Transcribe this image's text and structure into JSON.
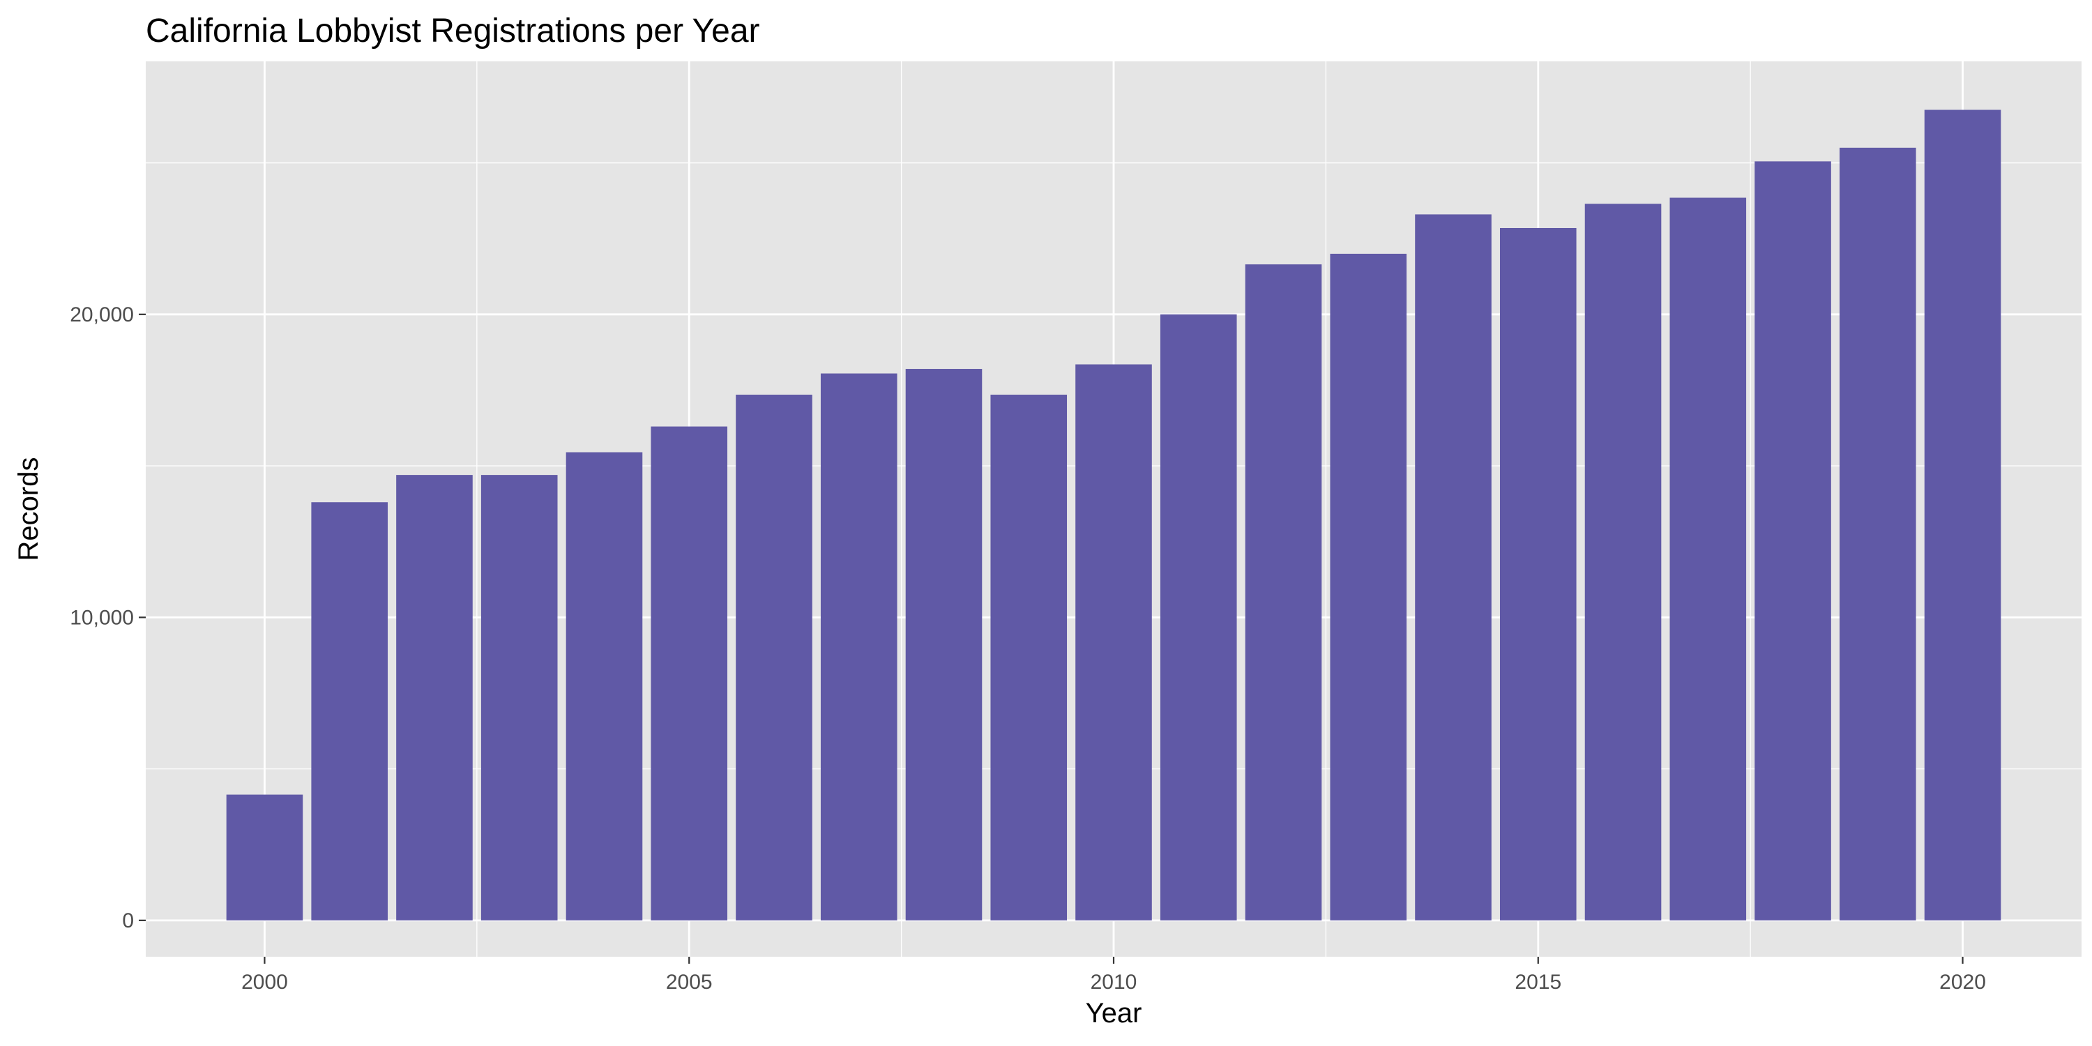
{
  "chart_data": {
    "type": "bar",
    "title": "California Lobbyist Registrations per Year",
    "xlabel": "Year",
    "ylabel": "Records",
    "categories": [
      2000,
      2001,
      2002,
      2003,
      2004,
      2005,
      2006,
      2007,
      2008,
      2009,
      2010,
      2011,
      2012,
      2013,
      2014,
      2015,
      2016,
      2017,
      2018,
      2019,
      2020
    ],
    "values": [
      4150,
      13800,
      14700,
      14700,
      15450,
      16300,
      17350,
      18050,
      18200,
      17350,
      18350,
      20000,
      21650,
      22000,
      23300,
      22850,
      23650,
      23850,
      25050,
      25500,
      26750
    ],
    "xlim": [
      1998.6,
      2021.4
    ],
    "ylim": [
      -1200,
      28350
    ],
    "x_ticks": [
      2000,
      2005,
      2010,
      2015,
      2020
    ],
    "x_tick_labels": [
      "2000",
      "2005",
      "2010",
      "2015",
      "2020"
    ],
    "y_ticks": [
      0,
      10000,
      20000
    ],
    "y_tick_labels": [
      "0",
      "10,000",
      "20,000"
    ],
    "grid": true,
    "legend": "none",
    "colors": {
      "bar": "#6059a6",
      "panel_background": "#e5e5e5",
      "grid": "#ffffff",
      "tick_text": "#4d4d4d",
      "tick_mark": "#333333"
    }
  }
}
